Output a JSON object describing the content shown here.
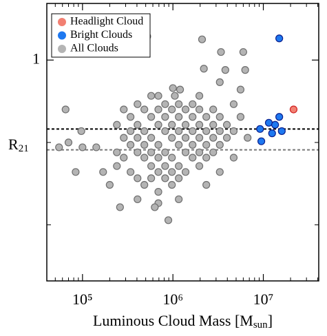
{
  "chart_data": {
    "type": "scatter",
    "xlabel": {
      "text": "Luminous Cloud Mass [M",
      "sub": "sun",
      "end": "]"
    },
    "ylabel": {
      "text": "R",
      "sub": "21"
    },
    "xscale": "log",
    "yscale": "log",
    "xlim": [
      40300,
      41000000
    ],
    "ylim": [
      0.156,
      1.61
    ],
    "xticks": [
      {
        "value": 100000,
        "label": "10⁵"
      },
      {
        "value": 1000000,
        "label": "10⁶"
      },
      {
        "value": 10000000,
        "label": "10⁷"
      }
    ],
    "minor_xticks": [
      50000,
      60000,
      70000,
      80000,
      90000,
      200000,
      300000,
      400000,
      500000,
      600000,
      700000,
      800000,
      900000,
      2000000,
      3000000,
      4000000,
      5000000,
      6000000,
      7000000,
      8000000,
      9000000,
      20000000,
      30000000,
      40000000
    ],
    "yticks": [
      1
    ],
    "minor_yticks": [
      0.5,
      0.25
    ],
    "hlines": [
      {
        "value": 0.56,
        "color": "#000000"
      },
      {
        "value": 0.47,
        "color": "#777777"
      }
    ],
    "legend": "upper left",
    "series": [
      {
        "name": "Headlight Cloud",
        "color": "#f28072",
        "edge": "#d02020",
        "x": [
          21600000
        ],
        "y": [
          0.66
        ]
      },
      {
        "name": "Bright Clouds",
        "color": "#1e78f0",
        "edge": "#0a1e8c",
        "x": [
          15000000,
          9200000,
          11500000,
          13500000,
          15000000,
          12500000,
          16000000,
          9500000
        ],
        "y": [
          1.2,
          0.56,
          0.59,
          0.58,
          0.62,
          0.54,
          0.55,
          0.505
        ]
      },
      {
        "name": "All Clouds",
        "color": "#b4b4b4",
        "edge": "#6e6e6e",
        "x": [
          2100000,
          3400000,
          6000000,
          520000,
          1000000,
          1050000,
          1200000,
          2200000,
          3800000,
          6300000,
          3300000,
          5600000,
          690000,
          1960000,
          65000,
          97000,
          70000,
          55000,
          100000,
          84000,
          142000,
          169000,
          200000,
          260000,
          406000,
          690000,
          890000,
          630000,
          1160000,
          2340000,
          3300000,
          4700000,
          6700000,
          5600000,
          4700000,
          240000,
          240000,
          240000,
          286000,
          286000,
          286000,
          340000,
          340000,
          340000,
          340000,
          406000,
          406000,
          406000,
          406000,
          406000,
          483000,
          483000,
          483000,
          483000,
          483000,
          575000,
          575000,
          575000,
          575000,
          575000,
          575000,
          690000,
          690000,
          690000,
          690000,
          690000,
          690000,
          820000,
          820000,
          820000,
          820000,
          820000,
          820000,
          975000,
          975000,
          975000,
          975000,
          975000,
          975000,
          1160000,
          1160000,
          1160000,
          1160000,
          1160000,
          1160000,
          1380000,
          1380000,
          1380000,
          1380000,
          1380000,
          1650000,
          1650000,
          1650000,
          1650000,
          1650000,
          1960000,
          1960000,
          1960000,
          1960000,
          1960000,
          2340000,
          2340000,
          2340000,
          2340000,
          2790000,
          2790000,
          2790000,
          2790000,
          3300000,
          3300000,
          3300000,
          3950000,
          3950000,
          4700000
        ],
        "y": [
          1.19,
          1.07,
          1.07,
          1.22,
          0.79,
          0.74,
          0.78,
          0.93,
          0.92,
          0.92,
          0.83,
          0.78,
          0.74,
          0.74,
          0.66,
          0.55,
          0.5,
          0.48,
          0.48,
          0.39,
          0.48,
          0.39,
          0.35,
          0.29,
          0.31,
          0.3,
          0.26,
          0.29,
          0.31,
          0.35,
          0.39,
          0.44,
          0.52,
          0.62,
          0.69,
          0.58,
          0.46,
          0.41,
          0.66,
          0.52,
          0.44,
          0.62,
          0.55,
          0.49,
          0.39,
          0.69,
          0.58,
          0.52,
          0.46,
          0.37,
          0.66,
          0.55,
          0.49,
          0.44,
          0.35,
          0.74,
          0.62,
          0.52,
          0.46,
          0.41,
          0.37,
          0.66,
          0.58,
          0.49,
          0.44,
          0.39,
          0.33,
          0.69,
          0.62,
          0.55,
          0.46,
          0.41,
          0.37,
          0.66,
          0.58,
          0.52,
          0.44,
          0.39,
          0.35,
          0.69,
          0.62,
          0.55,
          0.49,
          0.41,
          0.37,
          0.66,
          0.58,
          0.52,
          0.46,
          0.39,
          0.69,
          0.62,
          0.55,
          0.49,
          0.44,
          0.66,
          0.58,
          0.52,
          0.46,
          0.41,
          0.62,
          0.55,
          0.49,
          0.44,
          0.66,
          0.58,
          0.52,
          0.46,
          0.62,
          0.55,
          0.49,
          0.58,
          0.52,
          0.55
        ]
      }
    ]
  }
}
